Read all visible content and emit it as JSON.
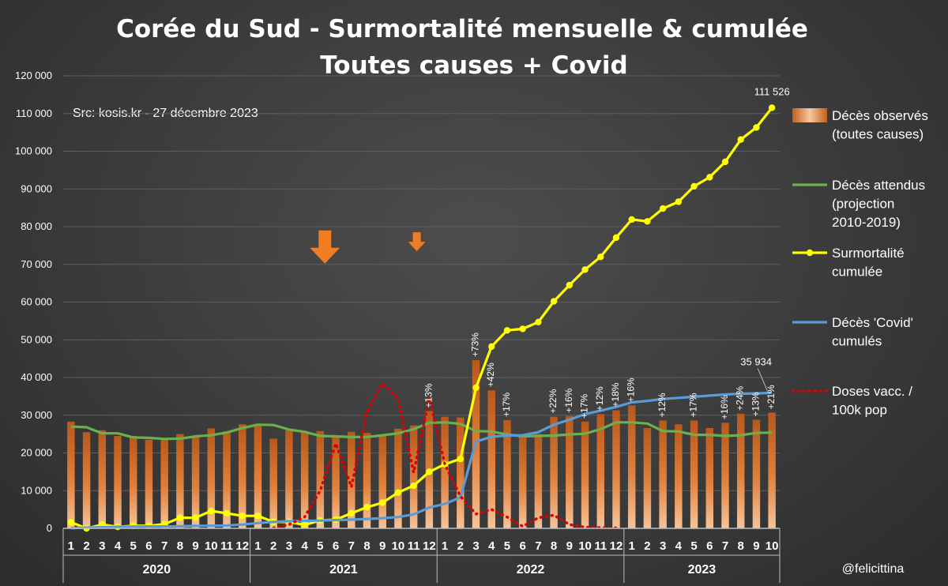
{
  "title_line1": "Corée du Sud - Surmortalité mensuelle & cumulée",
  "title_line2": "Toutes causes + Covid",
  "source": "Src: kosis.kr - 27 décembre 2023",
  "credit": "@felicittina",
  "colors": {
    "bars": "#e0803c",
    "expected": "#6ab04c",
    "excess": "#ffff00",
    "covid": "#5b9bd5",
    "vacc": "#e00000",
    "arrow": "#f07c24"
  },
  "chart_data": {
    "type": "bar",
    "ylim": [
      0,
      120000
    ],
    "yticks": [
      0,
      10000,
      20000,
      30000,
      40000,
      50000,
      60000,
      70000,
      80000,
      90000,
      100000,
      110000,
      120000
    ],
    "ytick_labels": [
      "0",
      "10 000",
      "20 000",
      "30 000",
      "40 000",
      "50 000",
      "60 000",
      "70 000",
      "80 000",
      "90 000",
      "100 000",
      "110 000",
      "120 000"
    ],
    "x_month_labels": [
      "1",
      "2",
      "3",
      "4",
      "5",
      "6",
      "7",
      "8",
      "9",
      "10",
      "11",
      "12",
      "1",
      "2",
      "3",
      "4",
      "5",
      "6",
      "7",
      "8",
      "9",
      "10",
      "11",
      "12",
      "1",
      "2",
      "3",
      "4",
      "5",
      "6",
      "7",
      "8",
      "9",
      "10",
      "11",
      "12",
      "1",
      "2",
      "3",
      "4",
      "5",
      "6",
      "7",
      "8",
      "9",
      "10"
    ],
    "years": [
      {
        "label": "2020",
        "months": 12
      },
      {
        "label": "2021",
        "months": 12
      },
      {
        "label": "2022",
        "months": 12
      },
      {
        "label": "2023",
        "months": 10
      }
    ],
    "series": [
      {
        "name": "Décès observés (toutes causes)",
        "kind": "bar",
        "values": [
          28300,
          25500,
          26000,
          24500,
          24500,
          23500,
          23500,
          25000,
          24200,
          26500,
          25700,
          27600,
          27700,
          23800,
          26300,
          25500,
          25800,
          24600,
          25600,
          25300,
          24600,
          26400,
          27300,
          31100,
          29600,
          29400,
          44600,
          36600,
          28700,
          24600,
          25000,
          29600,
          29800,
          28300,
          30300,
          31300,
          32600,
          26600,
          28600,
          27600,
          28600,
          26600,
          28000,
          30400,
          28800,
          30700
        ],
        "labels": {
          "23": "+13%",
          "26": "+73%",
          "27": "+42%",
          "28": "+17%",
          "31": "+22%",
          "32": "+16%",
          "33": "+17%",
          "34": "+12%",
          "35": "+18%",
          "36": "+16%",
          "38": "+12%",
          "40": "+17%",
          "42": "+16%",
          "43": "+24%",
          "44": "+13%",
          "45": "+21%"
        }
      },
      {
        "name": "Décès attendus (projection 2010-2019)",
        "kind": "line",
        "values": [
          27000,
          26800,
          25200,
          25200,
          24100,
          24000,
          23700,
          23800,
          24400,
          24700,
          25400,
          26600,
          27500,
          27400,
          26200,
          25600,
          24500,
          24400,
          24200,
          24200,
          24700,
          25200,
          26300,
          28000,
          28100,
          27700,
          25800,
          25700,
          24900,
          24400,
          24500,
          24600,
          24900,
          25100,
          26300,
          28100,
          28100,
          27800,
          25800,
          25700,
          24800,
          24800,
          24500,
          24700,
          25300,
          25400
        ]
      },
      {
        "name": "Surmortalité cumulée",
        "kind": "line-markers",
        "values": [
          1600,
          0,
          1000,
          400,
          700,
          700,
          1100,
          2800,
          2800,
          4600,
          4000,
          3300,
          3300,
          1700,
          1700,
          900,
          2100,
          2300,
          4000,
          5600,
          6800,
          9500,
          11300,
          15000,
          17000,
          18400,
          37300,
          48200,
          52500,
          52900,
          54700,
          60200,
          64500,
          68600,
          72000,
          77100,
          81900,
          81400,
          84800,
          86600,
          90700,
          93100,
          97200,
          103100,
          106300,
          111526
        ],
        "labels": {
          "45": "111 526"
        }
      },
      {
        "name": "Décès 'Covid' cumulés",
        "kind": "line",
        "values": [
          50,
          200,
          300,
          400,
          450,
          500,
          500,
          550,
          650,
          700,
          750,
          1000,
          1400,
          1700,
          1900,
          2000,
          2050,
          2200,
          2300,
          2500,
          2700,
          3000,
          3700,
          5500,
          6500,
          8200,
          23000,
          24300,
          24600,
          24700,
          25500,
          27500,
          28800,
          30300,
          31200,
          32200,
          33400,
          33800,
          34300,
          34600,
          34900,
          35200,
          35500,
          35700,
          35800,
          35934
        ],
        "labels": {
          "45": "35 934"
        }
      },
      {
        "name": "Doses vacc. / 100k pop",
        "kind": "dotted",
        "values": [
          null,
          null,
          null,
          null,
          null,
          null,
          null,
          null,
          null,
          null,
          null,
          null,
          null,
          100,
          1000,
          3000,
          10000,
          22500,
          11000,
          31000,
          38500,
          34500,
          14800,
          34500,
          17000,
          8500,
          3800,
          5000,
          3000,
          500,
          2800,
          3500,
          1000,
          300,
          200,
          100,
          null,
          null,
          null,
          null,
          null,
          null,
          null,
          null,
          null,
          null
        ]
      }
    ],
    "legend": [
      {
        "key": "bars",
        "text": [
          "Décès observés",
          "(toutes causes)"
        ]
      },
      {
        "key": "expected",
        "text": [
          "Décès attendus",
          "(projection",
          "2010-2019)"
        ]
      },
      {
        "key": "excess",
        "text": [
          "Surmortalité",
          "cumulée"
        ]
      },
      {
        "key": "covid",
        "text": [
          "Décès 'Covid'",
          "cumulés"
        ]
      },
      {
        "key": "vacc",
        "text": [
          "Doses vacc. /",
          "100k pop"
        ]
      }
    ],
    "legend_position": "right",
    "annotations": [
      {
        "type": "arrow-down",
        "month_index": 16.3,
        "y": 79000,
        "size": "large"
      },
      {
        "type": "arrow-down",
        "month_index": 22.2,
        "y": 78500,
        "size": "small"
      }
    ]
  }
}
